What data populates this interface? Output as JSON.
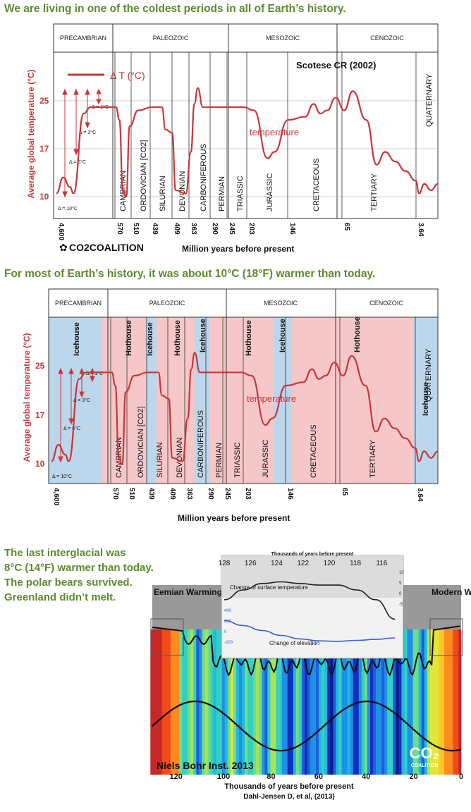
{
  "headlines": {
    "h1": "We are living in one of the coldest periods in all of Earth’s history.",
    "h2": "For most of Earth’s history, it was about 10°C (18°F) warmer than today.",
    "h3": [
      "The last interglacial was",
      "8°C (14°F) warmer than today.",
      "The polar bears survived.",
      "Greenland didn’t melt."
    ]
  },
  "colors": {
    "headline": "#5c8a2e",
    "temperature": "#c8363a",
    "hothouse": "#f6c7c8",
    "icehouse": "#bcd6ec"
  },
  "chart_data": [
    {
      "type": "line",
      "source": "Scotese CR (2002)",
      "logo": "CO2COALITION",
      "delta_legend": "Δ T (°C)",
      "series_label": "temperature",
      "ylabel": "Average global temperature (°C)",
      "xlabel": "Million years before present",
      "yticks": [
        10,
        17,
        25
      ],
      "xticks": [
        "4,600",
        "570",
        "510",
        "439",
        "409",
        "363",
        "290",
        "245",
        "203",
        "146",
        "65",
        "3.64"
      ],
      "eras": [
        "PRECAMBRIAN",
        "PALEOZOIC",
        "MESOZOIC",
        "CENOZOIC"
      ],
      "periods": [
        "CAMBRIAN",
        "ORDOVICIAN [CO2]",
        "SILURIAN",
        "DEVONIAN",
        "CARBONIFEROUS",
        "PERMIAN",
        "TRIASSIC",
        "JURASSIC",
        "CRETACEOUS",
        "TERTIARY",
        "QUATERNARY"
      ],
      "deltas": [
        "Δ = 1°C",
        "Δ = 3°C",
        "Δ = 6°C",
        "Δ = 10°C"
      ],
      "points": [
        [
          0,
          10.5
        ],
        [
          0.4,
          13
        ],
        [
          0.8,
          11.5
        ],
        [
          1.0,
          10.5
        ],
        [
          1.6,
          23
        ],
        [
          2.0,
          24
        ],
        [
          3.5,
          24
        ],
        [
          3.7,
          22
        ],
        [
          3.9,
          11
        ],
        [
          4.1,
          10
        ],
        [
          4.3,
          21
        ],
        [
          4.8,
          23.5
        ],
        [
          5.6,
          24
        ],
        [
          6.2,
          24
        ],
        [
          6.4,
          20.5
        ],
        [
          6.8,
          20
        ],
        [
          7.0,
          11
        ],
        [
          7.6,
          10.5
        ],
        [
          7.9,
          17
        ],
        [
          8.1,
          24.5
        ],
        [
          8.3,
          27
        ],
        [
          8.6,
          24
        ],
        [
          9.5,
          24
        ],
        [
          11,
          24
        ],
        [
          11.6,
          23.5
        ],
        [
          12.4,
          16
        ],
        [
          12.8,
          17
        ],
        [
          13.6,
          22
        ],
        [
          14.6,
          22.5
        ],
        [
          15.1,
          24.5
        ],
        [
          15.5,
          23
        ],
        [
          15.9,
          23.5
        ],
        [
          16.4,
          25.5
        ],
        [
          16.9,
          23.5
        ],
        [
          17.4,
          26.5
        ],
        [
          18.2,
          22
        ],
        [
          18.8,
          15
        ],
        [
          19.3,
          17
        ],
        [
          19.9,
          15.5
        ],
        [
          20.5,
          14
        ],
        [
          21.1,
          12.5
        ],
        [
          21.3,
          10.5
        ],
        [
          21.6,
          12
        ],
        [
          22,
          11
        ],
        [
          22.4,
          12
        ]
      ]
    },
    {
      "type": "line",
      "ylabel": "Average global temperature (°C)",
      "xlabel": "Million years before present",
      "series_label": "temperature",
      "yticks": [
        10,
        17,
        25
      ],
      "xticks": [
        "4,600",
        "570",
        "510",
        "439",
        "409",
        "363",
        "290",
        "245",
        "203",
        "146",
        "65",
        "3.64"
      ],
      "eras": [
        "PRECAMBRIAN",
        "PALEOZOIC",
        "MESOZOIC",
        "CENOZOIC"
      ],
      "periods": [
        "CAMBRIAN",
        "ORDOVICIAN [CO2]",
        "SILURIAN",
        "DEVONIAN",
        "CARBONIFEROUS",
        "PERMIAN",
        "TRIASSIC",
        "JURASSIC",
        "CRETACEOUS",
        "TERTIARY",
        "QUATERNARY"
      ],
      "states": [
        {
          "label": "Icehouse",
          "kind": "ice"
        },
        {
          "label": "Hothouse",
          "kind": "hot"
        },
        {
          "label": "Icehouse",
          "kind": "ice"
        },
        {
          "label": "Hothouse",
          "kind": "hot"
        },
        {
          "label": "Icehouse",
          "kind": "ice"
        },
        {
          "label": "Hothouse",
          "kind": "hot"
        },
        {
          "label": "Icehouse",
          "kind": "ice"
        },
        {
          "label": "Hothouse",
          "kind": "hot"
        },
        {
          "label": "Icehouse",
          "kind": "ice"
        }
      ],
      "deltas": [
        "Δ = 1°C",
        "Δ = 3°C",
        "Δ = 6°C",
        "Δ = 10°C"
      ]
    },
    {
      "type": "area",
      "source": "Niels Bohr Inst. 2013",
      "citation": "Dahl-Jensen D, et al, (2013)",
      "xlabel": "Thousands of years before present",
      "xticks": [
        120,
        100,
        80,
        60,
        40,
        20,
        0
      ],
      "labels": {
        "left": "Eemian Warming",
        "right": "Modern Warming"
      },
      "logo": "CO2 COALITION",
      "inset": {
        "title": "Thousands of years before present",
        "xticks": [
          128,
          126,
          124,
          122,
          120,
          118,
          116
        ],
        "yticks_right": [
          "10",
          "5",
          "0",
          "-5"
        ],
        "yticks_left": [
          "400",
          "200",
          "0",
          "-200"
        ],
        "series": [
          {
            "name": "Change of surface temperature",
            "values": [
              2,
              5,
              7,
              7.5,
              7,
              6.5,
              6.5,
              5,
              2,
              -4
            ]
          },
          {
            "name": "Change of elevation",
            "values": [
              250,
              150,
              50,
              -50,
              -120,
              -160,
              -170,
              -150,
              -130,
              -100
            ]
          }
        ]
      }
    }
  ]
}
